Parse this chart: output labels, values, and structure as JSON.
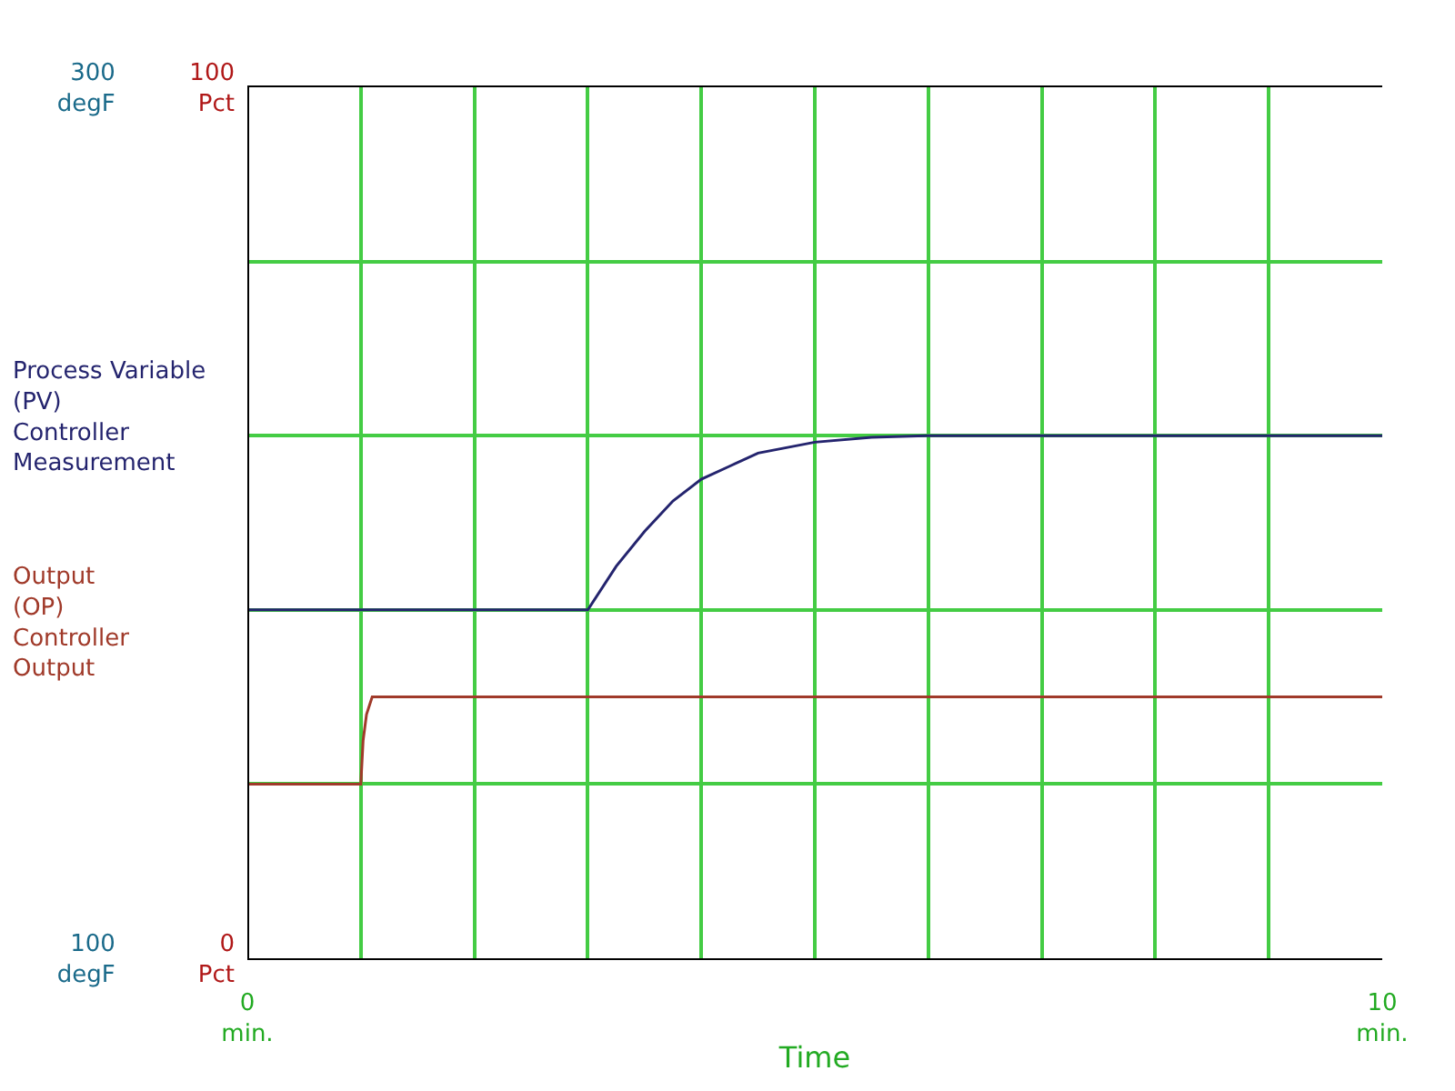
{
  "chart_data": {
    "type": "line",
    "xlabel": "Time",
    "xlim": [
      0,
      10
    ],
    "xticks": [
      {
        "value": 0,
        "label": "0\nmin."
      },
      {
        "value": 1,
        "label": null
      },
      {
        "value": 2,
        "label": null
      },
      {
        "value": 3,
        "label": null
      },
      {
        "value": 4,
        "label": null
      },
      {
        "value": 5,
        "label": null
      },
      {
        "value": 6,
        "label": null
      },
      {
        "value": 7,
        "label": null
      },
      {
        "value": 8,
        "label": null
      },
      {
        "value": 9,
        "label": null
      },
      {
        "value": 10,
        "label": "10\nmin."
      }
    ],
    "ylim": [
      100,
      300
    ],
    "yticks": [
      {
        "value": 100,
        "label": "100\ndegF"
      },
      {
        "value": 140,
        "label": null
      },
      {
        "value": 180,
        "label": null
      },
      {
        "value": 220,
        "label": null
      },
      {
        "value": 260,
        "label": null
      },
      {
        "value": 300,
        "label": "300\ndegF"
      }
    ],
    "y2lim": [
      0,
      100
    ],
    "y2ticks": [
      {
        "value": 0,
        "label": "0\nPct"
      },
      {
        "value": 20,
        "label": null
      },
      {
        "value": 40,
        "label": null
      },
      {
        "value": 60,
        "label": null
      },
      {
        "value": 80,
        "label": null
      },
      {
        "value": 100,
        "label": "100\nPct"
      }
    ],
    "grid": true,
    "legend": false,
    "marker": "none",
    "line_style": "solid",
    "series": [
      {
        "name": "Process Variable\n(PV)\nController\nMeasurement",
        "color": "#24246e",
        "x": [
          0,
          3,
          3.25,
          3.5,
          3.75,
          4,
          4.25,
          4.5,
          5,
          5.5,
          6,
          10
        ],
        "values": [
          180,
          180,
          190,
          198,
          205,
          210,
          213,
          216,
          218.5,
          219.6,
          220,
          220
        ]
      },
      {
        "name": "Output\n(OP)\nController\nOutput",
        "color": "#a03a2a",
        "axis": "y2",
        "x": [
          0,
          1,
          1.02,
          1.05,
          1.1,
          10
        ],
        "values": [
          20,
          20,
          25,
          28,
          30,
          30
        ]
      }
    ]
  }
}
